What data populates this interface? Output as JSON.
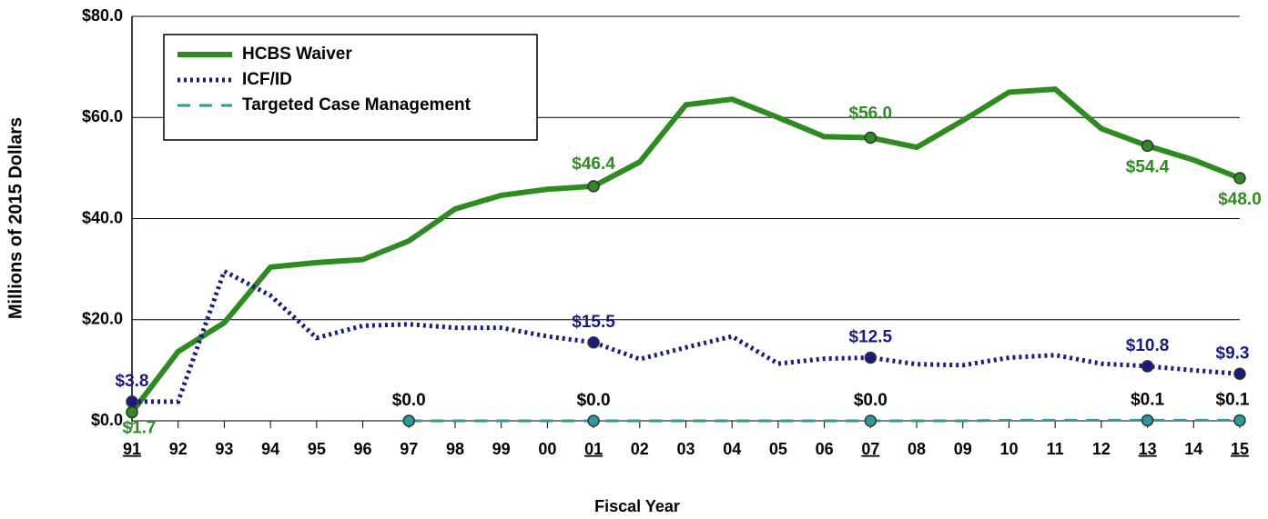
{
  "chart_data": {
    "type": "line",
    "x_label": "Fiscal Year",
    "y_label": "Millions of 2015 Dollars",
    "categories": [
      "91",
      "92",
      "93",
      "94",
      "95",
      "96",
      "97",
      "98",
      "99",
      "00",
      "01",
      "02",
      "03",
      "04",
      "05",
      "06",
      "07",
      "08",
      "09",
      "10",
      "11",
      "12",
      "13",
      "14",
      "15"
    ],
    "ylim": [
      0,
      80
    ],
    "yticks": [
      {
        "value": 0,
        "label": "$0.0"
      },
      {
        "value": 20,
        "label": "$20.0"
      },
      {
        "value": 40,
        "label": "$40.0"
      },
      {
        "value": 60,
        "label": "$60.0"
      },
      {
        "value": 80,
        "label": "$80.0"
      }
    ],
    "grid": true,
    "legend": "upper-left",
    "series": [
      {
        "name": "HCBS Waiver",
        "color": "#2e8b22",
        "style": "solid",
        "values": [
          1.7,
          13.7,
          19.4,
          30.4,
          31.3,
          31.9,
          35.6,
          41.9,
          44.6,
          45.8,
          46.4,
          51.2,
          62.5,
          63.6,
          60.0,
          56.2,
          56.0,
          54.1,
          59.4,
          65.0,
          65.6,
          57.8,
          54.4,
          51.6,
          48.0
        ],
        "value_labels": [
          "$1.7",
          null,
          null,
          null,
          null,
          null,
          null,
          null,
          null,
          null,
          "$46.4",
          null,
          null,
          null,
          null,
          null,
          "$56.0",
          null,
          null,
          null,
          null,
          null,
          "$54.4",
          null,
          "$48.0"
        ]
      },
      {
        "name": "ICF/ID",
        "color": "#1a1a80",
        "style": "dotted",
        "values": [
          3.8,
          3.8,
          29.6,
          24.8,
          16.4,
          18.8,
          19.1,
          18.4,
          18.4,
          16.7,
          15.5,
          12.2,
          14.5,
          16.7,
          11.3,
          12.3,
          12.5,
          11.2,
          11.0,
          12.5,
          13.0,
          11.3,
          10.8,
          10.0,
          9.3
        ],
        "value_labels": [
          "$3.8",
          null,
          null,
          null,
          null,
          null,
          null,
          null,
          null,
          null,
          "$15.5",
          null,
          null,
          null,
          null,
          null,
          "$12.5",
          null,
          null,
          null,
          null,
          null,
          "$10.8",
          null,
          "$9.3"
        ]
      },
      {
        "name": "Targeted Case Management",
        "color": "#2a9a9a",
        "style": "dashed",
        "values": [
          null,
          null,
          null,
          null,
          null,
          null,
          0.0,
          0.0,
          0.0,
          0.0,
          0.0,
          0.0,
          0.0,
          0.0,
          0.0,
          0.0,
          0.0,
          0.0,
          0.0,
          0.1,
          0.1,
          0.1,
          0.1,
          0.1,
          0.1
        ],
        "value_labels": [
          null,
          null,
          null,
          null,
          null,
          null,
          "$0.0",
          null,
          null,
          null,
          "$0.0",
          null,
          null,
          null,
          null,
          null,
          "$0.0",
          null,
          null,
          null,
          null,
          null,
          "$0.1",
          null,
          "$0.1"
        ]
      }
    ]
  }
}
